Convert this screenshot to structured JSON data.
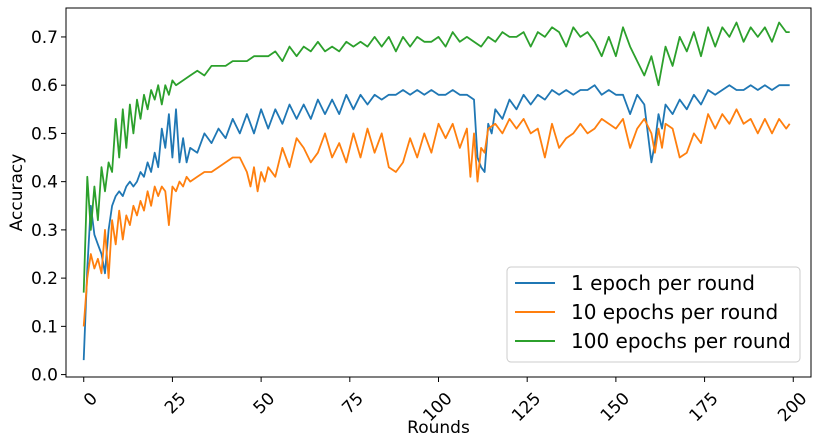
{
  "chart_data": {
    "type": "line",
    "title": "",
    "xlabel": "Rounds",
    "ylabel": "Accuracy",
    "xlim": [
      -5,
      205
    ],
    "ylim": [
      -0.005,
      0.76
    ],
    "xticks": [
      0,
      25,
      50,
      75,
      100,
      125,
      150,
      175,
      200
    ],
    "xtick_labels": [
      "0",
      "25",
      "50",
      "75",
      "100",
      "125",
      "150",
      "175",
      "200"
    ],
    "yticks": [
      0.0,
      0.1,
      0.2,
      0.3,
      0.4,
      0.5,
      0.6,
      0.7
    ],
    "ytick_labels": [
      "0.0",
      "0.1",
      "0.2",
      "0.3",
      "0.4",
      "0.5",
      "0.6",
      "0.7"
    ],
    "grid": false,
    "legend_position": "bottom-right",
    "series": [
      {
        "name": "1 epoch per round",
        "color": "#1f77b4",
        "x": [
          0,
          1,
          2,
          3,
          4,
          5,
          6,
          7,
          8,
          9,
          10,
          11,
          12,
          13,
          14,
          15,
          16,
          17,
          18,
          19,
          20,
          21,
          22,
          23,
          24,
          25,
          26,
          27,
          28,
          29,
          30,
          32,
          34,
          36,
          38,
          40,
          42,
          44,
          46,
          48,
          50,
          52,
          54,
          56,
          58,
          60,
          62,
          64,
          66,
          68,
          70,
          72,
          74,
          76,
          78,
          80,
          82,
          84,
          86,
          88,
          90,
          92,
          94,
          96,
          98,
          100,
          102,
          104,
          106,
          108,
          110,
          111,
          112,
          113,
          114,
          115,
          116,
          118,
          120,
          122,
          124,
          126,
          128,
          130,
          132,
          134,
          136,
          138,
          140,
          142,
          144,
          146,
          148,
          150,
          152,
          154,
          156,
          158,
          160,
          161,
          162,
          163,
          164,
          166,
          168,
          170,
          172,
          174,
          176,
          178,
          180,
          182,
          184,
          186,
          188,
          190,
          192,
          194,
          196,
          198,
          199
        ],
        "values": [
          0.03,
          0.22,
          0.35,
          0.29,
          0.27,
          0.25,
          0.21,
          0.3,
          0.35,
          0.37,
          0.38,
          0.37,
          0.39,
          0.4,
          0.39,
          0.4,
          0.42,
          0.41,
          0.44,
          0.42,
          0.46,
          0.43,
          0.51,
          0.47,
          0.54,
          0.45,
          0.55,
          0.44,
          0.49,
          0.44,
          0.47,
          0.46,
          0.5,
          0.48,
          0.51,
          0.49,
          0.53,
          0.5,
          0.54,
          0.5,
          0.55,
          0.51,
          0.55,
          0.52,
          0.56,
          0.53,
          0.56,
          0.53,
          0.57,
          0.54,
          0.57,
          0.54,
          0.58,
          0.55,
          0.58,
          0.56,
          0.58,
          0.57,
          0.58,
          0.58,
          0.59,
          0.58,
          0.59,
          0.58,
          0.59,
          0.58,
          0.58,
          0.59,
          0.58,
          0.58,
          0.57,
          0.45,
          0.43,
          0.42,
          0.52,
          0.5,
          0.55,
          0.53,
          0.57,
          0.55,
          0.58,
          0.56,
          0.58,
          0.57,
          0.59,
          0.58,
          0.59,
          0.58,
          0.59,
          0.59,
          0.6,
          0.58,
          0.59,
          0.58,
          0.58,
          0.54,
          0.58,
          0.56,
          0.44,
          0.48,
          0.54,
          0.51,
          0.56,
          0.54,
          0.57,
          0.55,
          0.58,
          0.56,
          0.59,
          0.58,
          0.59,
          0.6,
          0.59,
          0.59,
          0.6,
          0.59,
          0.6,
          0.59,
          0.6,
          0.6,
          0.6
        ]
      },
      {
        "name": "10 epochs per round",
        "color": "#ff7f0e",
        "x": [
          0,
          1,
          2,
          3,
          4,
          5,
          6,
          7,
          8,
          9,
          10,
          11,
          12,
          13,
          14,
          15,
          16,
          17,
          18,
          19,
          20,
          21,
          22,
          23,
          24,
          25,
          26,
          27,
          28,
          29,
          30,
          32,
          34,
          36,
          38,
          40,
          42,
          44,
          46,
          47,
          48,
          49,
          50,
          51,
          52,
          54,
          56,
          58,
          60,
          62,
          64,
          66,
          68,
          70,
          72,
          74,
          76,
          78,
          80,
          82,
          84,
          86,
          88,
          90,
          92,
          94,
          96,
          98,
          100,
          102,
          104,
          106,
          108,
          109,
          110,
          111,
          112,
          113,
          114,
          116,
          118,
          120,
          122,
          124,
          126,
          128,
          130,
          132,
          134,
          136,
          138,
          140,
          142,
          144,
          146,
          148,
          150,
          152,
          154,
          156,
          158,
          160,
          161,
          162,
          163,
          164,
          166,
          168,
          170,
          172,
          174,
          176,
          178,
          180,
          182,
          184,
          186,
          188,
          190,
          192,
          194,
          196,
          198,
          199
        ],
        "values": [
          0.1,
          0.2,
          0.25,
          0.22,
          0.24,
          0.21,
          0.3,
          0.2,
          0.32,
          0.27,
          0.34,
          0.28,
          0.33,
          0.31,
          0.35,
          0.33,
          0.36,
          0.34,
          0.38,
          0.35,
          0.39,
          0.37,
          0.39,
          0.38,
          0.31,
          0.39,
          0.38,
          0.4,
          0.39,
          0.41,
          0.4,
          0.41,
          0.42,
          0.42,
          0.43,
          0.44,
          0.45,
          0.45,
          0.42,
          0.39,
          0.43,
          0.38,
          0.42,
          0.4,
          0.43,
          0.41,
          0.47,
          0.43,
          0.49,
          0.47,
          0.44,
          0.46,
          0.5,
          0.45,
          0.48,
          0.44,
          0.5,
          0.45,
          0.51,
          0.46,
          0.5,
          0.43,
          0.42,
          0.44,
          0.49,
          0.45,
          0.5,
          0.46,
          0.52,
          0.49,
          0.52,
          0.47,
          0.51,
          0.41,
          0.5,
          0.4,
          0.47,
          0.46,
          0.51,
          0.52,
          0.5,
          0.53,
          0.51,
          0.53,
          0.5,
          0.51,
          0.45,
          0.52,
          0.47,
          0.49,
          0.5,
          0.52,
          0.5,
          0.51,
          0.53,
          0.52,
          0.51,
          0.53,
          0.47,
          0.51,
          0.53,
          0.5,
          0.46,
          0.51,
          0.47,
          0.52,
          0.51,
          0.45,
          0.46,
          0.5,
          0.48,
          0.54,
          0.51,
          0.54,
          0.52,
          0.55,
          0.52,
          0.53,
          0.5,
          0.53,
          0.5,
          0.53,
          0.51,
          0.52
        ]
      },
      {
        "name": "100 epochs per round",
        "color": "#2ca02c",
        "x": [
          0,
          1,
          2,
          3,
          4,
          5,
          6,
          7,
          8,
          9,
          10,
          11,
          12,
          13,
          14,
          15,
          16,
          17,
          18,
          19,
          20,
          21,
          22,
          23,
          24,
          25,
          26,
          28,
          30,
          32,
          34,
          36,
          38,
          40,
          42,
          44,
          46,
          48,
          50,
          52,
          54,
          56,
          58,
          60,
          62,
          64,
          66,
          68,
          70,
          72,
          74,
          76,
          78,
          80,
          82,
          84,
          86,
          88,
          90,
          92,
          94,
          96,
          98,
          100,
          102,
          104,
          106,
          108,
          110,
          112,
          114,
          116,
          118,
          120,
          122,
          124,
          126,
          128,
          130,
          132,
          134,
          136,
          138,
          140,
          142,
          144,
          146,
          148,
          150,
          152,
          154,
          156,
          158,
          160,
          162,
          164,
          166,
          168,
          170,
          172,
          174,
          176,
          178,
          180,
          182,
          184,
          186,
          188,
          190,
          192,
          194,
          196,
          198,
          199
        ],
        "values": [
          0.17,
          0.41,
          0.3,
          0.39,
          0.32,
          0.43,
          0.38,
          0.44,
          0.42,
          0.53,
          0.45,
          0.55,
          0.47,
          0.56,
          0.5,
          0.57,
          0.53,
          0.58,
          0.55,
          0.59,
          0.57,
          0.6,
          0.56,
          0.6,
          0.58,
          0.61,
          0.6,
          0.61,
          0.62,
          0.63,
          0.62,
          0.64,
          0.64,
          0.64,
          0.65,
          0.65,
          0.65,
          0.66,
          0.66,
          0.66,
          0.67,
          0.65,
          0.68,
          0.66,
          0.68,
          0.67,
          0.69,
          0.67,
          0.68,
          0.67,
          0.69,
          0.68,
          0.69,
          0.68,
          0.7,
          0.68,
          0.7,
          0.67,
          0.7,
          0.68,
          0.7,
          0.69,
          0.69,
          0.7,
          0.68,
          0.71,
          0.69,
          0.7,
          0.69,
          0.68,
          0.7,
          0.69,
          0.71,
          0.7,
          0.7,
          0.71,
          0.68,
          0.71,
          0.7,
          0.72,
          0.71,
          0.68,
          0.72,
          0.7,
          0.71,
          0.69,
          0.66,
          0.7,
          0.66,
          0.72,
          0.68,
          0.65,
          0.62,
          0.66,
          0.6,
          0.68,
          0.64,
          0.7,
          0.67,
          0.71,
          0.66,
          0.72,
          0.68,
          0.72,
          0.7,
          0.73,
          0.69,
          0.72,
          0.7,
          0.72,
          0.69,
          0.73,
          0.71,
          0.71
        ]
      }
    ]
  }
}
